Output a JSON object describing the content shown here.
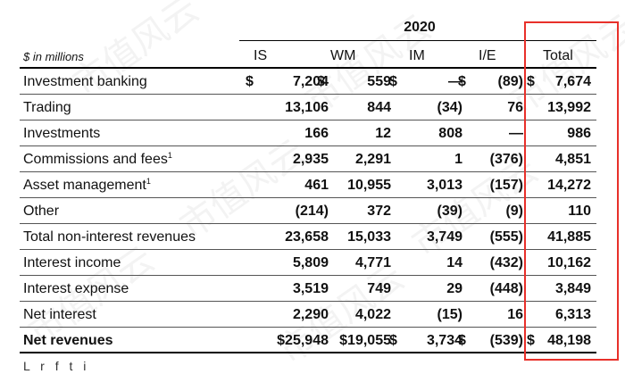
{
  "year": "2020",
  "unit_label": "$ in millions",
  "columns": [
    "IS",
    "WM",
    "IM",
    "I/E",
    "Total"
  ],
  "watermark_text": "市值风云",
  "cut_off_text": "L   r   f   t   i",
  "rows": [
    {
      "label": "Investment banking",
      "sup": "",
      "bold": false,
      "dollar": [
        "$",
        "$",
        "$",
        "$",
        "$"
      ],
      "values": [
        "7,204",
        "559",
        "—",
        "(89)",
        "7,674"
      ]
    },
    {
      "label": "Trading",
      "sup": "",
      "bold": false,
      "dollar": [
        "",
        "",
        "",
        "",
        ""
      ],
      "values": [
        "13,106",
        "844",
        "(34)",
        "76",
        "13,992"
      ]
    },
    {
      "label": "Investments",
      "sup": "",
      "bold": false,
      "dollar": [
        "",
        "",
        "",
        "",
        ""
      ],
      "values": [
        "166",
        "12",
        "808",
        "—",
        "986"
      ]
    },
    {
      "label": "Commissions and fees",
      "sup": "1",
      "bold": false,
      "dollar": [
        "",
        "",
        "",
        "",
        ""
      ],
      "values": [
        "2,935",
        "2,291",
        "1",
        "(376)",
        "4,851"
      ]
    },
    {
      "label": "Asset management",
      "sup": "1",
      "bold": false,
      "dollar": [
        "",
        "",
        "",
        "",
        ""
      ],
      "values": [
        "461",
        "10,955",
        "3,013",
        "(157)",
        "14,272"
      ]
    },
    {
      "label": "Other",
      "sup": "",
      "bold": false,
      "dollar": [
        "",
        "",
        "",
        "",
        ""
      ],
      "values": [
        "(214)",
        "372",
        "(39)",
        "(9)",
        "110"
      ]
    },
    {
      "label": "Total non-interest revenues",
      "sup": "",
      "bold": false,
      "dollar": [
        "",
        "",
        "",
        "",
        ""
      ],
      "values": [
        "23,658",
        "15,033",
        "3,749",
        "(555)",
        "41,885"
      ]
    },
    {
      "label": "Interest income",
      "sup": "",
      "bold": false,
      "dollar": [
        "",
        "",
        "",
        "",
        ""
      ],
      "values": [
        "5,809",
        "4,771",
        "14",
        "(432)",
        "10,162"
      ]
    },
    {
      "label": "Interest expense",
      "sup": "",
      "bold": false,
      "dollar": [
        "",
        "",
        "",
        "",
        ""
      ],
      "values": [
        "3,519",
        "749",
        "29",
        "(448)",
        "3,849"
      ]
    },
    {
      "label": "Net interest",
      "sup": "",
      "bold": false,
      "dollar": [
        "",
        "",
        "",
        "",
        ""
      ],
      "values": [
        "2,290",
        "4,022",
        "(15)",
        "16",
        "6,313"
      ]
    },
    {
      "label": "Net revenues",
      "sup": "",
      "bold": true,
      "dollar": [
        "",
        "",
        "$",
        "$",
        "$"
      ],
      "values": [
        "$25,948",
        "$19,055",
        "3,734",
        "(539)",
        "48,198"
      ]
    }
  ]
}
